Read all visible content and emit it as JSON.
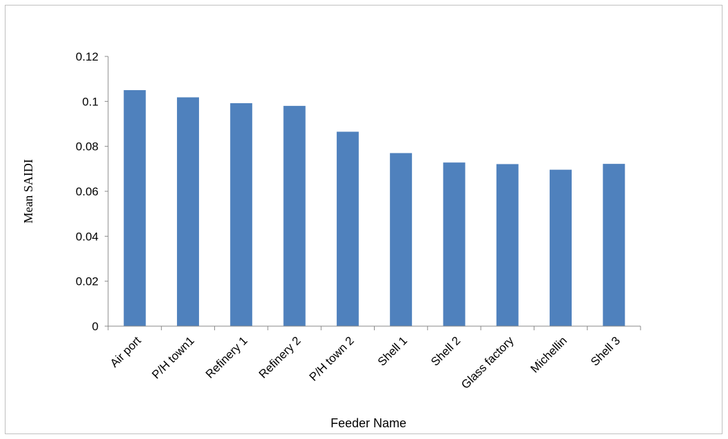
{
  "chart_data": {
    "type": "bar",
    "title": "",
    "xlabel": "Feeder Name",
    "ylabel": "Mean SAIDI",
    "categories": [
      "Air port",
      "P/H town1",
      "Refinery 1",
      "Refinery 2",
      "P/H town 2",
      "Shell 1",
      "Shell 2",
      "Glass factory",
      "Michellin",
      "Shell 3"
    ],
    "values": [
      0.105,
      0.1018,
      0.0992,
      0.098,
      0.0865,
      0.077,
      0.0728,
      0.0721,
      0.0696,
      0.0722
    ],
    "ylim": [
      0,
      0.12
    ],
    "yticks": [
      "0",
      "0.02",
      "0.04",
      "0.06",
      "0.08",
      "0.1",
      "0.12"
    ],
    "grid": false,
    "legend": "none",
    "bar_color": "#4f81bd"
  }
}
